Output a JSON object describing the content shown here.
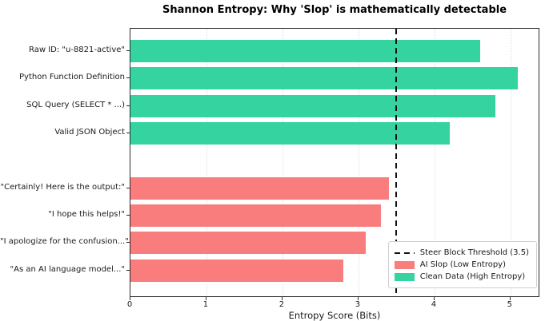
{
  "chart_data": {
    "type": "bar",
    "orientation": "horizontal",
    "title": "Shannon Entropy: Why 'Slop' is mathematically detectable",
    "xlabel": "Entropy Score (Bits)",
    "xlim": [
      0,
      5.37
    ],
    "x_ticks": [
      "0",
      "1",
      "2",
      "3",
      "4",
      "5"
    ],
    "grid": true,
    "threshold": {
      "value": 3.5,
      "color": "#111111",
      "style": "dashed"
    },
    "legend": {
      "position": "lower right",
      "entries": [
        {
          "label": "Steer Block Threshold (3.5)",
          "swatch": "dashed-line",
          "color": "#111111"
        },
        {
          "label": "AI Slop (Low Entropy)",
          "swatch": "patch",
          "color": "#fa7d7d"
        },
        {
          "label": "Clean Data (High Entropy)",
          "swatch": "patch",
          "color": "#34d3a0"
        }
      ]
    },
    "groups": [
      {
        "name": "Clean Data (High Entropy)",
        "color": "#34d3a0",
        "categories": [
          "Raw ID: \"u-8821-active\"",
          "Python Function Definition",
          "SQL Query (SELECT * ...)",
          "Valid JSON Object"
        ],
        "values": [
          4.6,
          5.1,
          4.8,
          4.2
        ]
      },
      {
        "name": "AI Slop (Low Entropy)",
        "color": "#fa7d7d",
        "categories": [
          "\"Certainly! Here is the output:\"",
          "\"I hope this helps!\"",
          "\"I apologize for the confusion...\"",
          "\"As an AI language model...\""
        ],
        "values": [
          3.4,
          3.3,
          3.1,
          2.8
        ]
      }
    ]
  }
}
